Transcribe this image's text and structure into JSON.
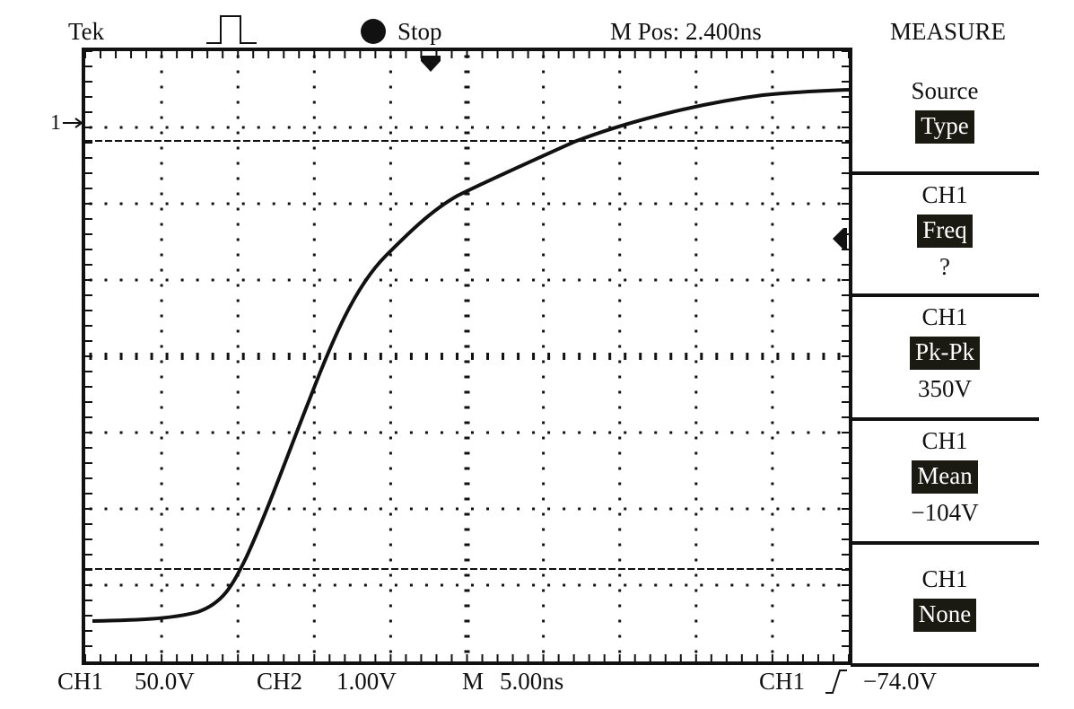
{
  "header": {
    "brand": "Tek",
    "run_state": "Stop",
    "horizontal_position": "M Pos: 2.400ns",
    "menu_title": "MEASURE"
  },
  "markers": {
    "ch1_ground_marker": "1"
  },
  "measure_menu": [
    {
      "label": "Source",
      "button": "Type",
      "value": ""
    },
    {
      "label": "CH1",
      "button": "Freq",
      "value": "?"
    },
    {
      "label": "CH1",
      "button": "Pk-Pk",
      "value": "350V"
    },
    {
      "label": "CH1",
      "button": "Mean",
      "value": "−104V"
    },
    {
      "label": "CH1",
      "button": "None",
      "value": ""
    }
  ],
  "footer": {
    "ch1_label": "CH1",
    "ch1_scale": "50.0V",
    "ch2_label": "CH2",
    "ch2_scale": "1.00V",
    "timebase_label": "M",
    "timebase_scale": "5.00ns",
    "trigger_source": "CH1",
    "trigger_level": "−74.0V"
  },
  "colors": {
    "ink": "#111111",
    "highlight_bg": "#1a1a12",
    "background": "#ffffff"
  }
}
